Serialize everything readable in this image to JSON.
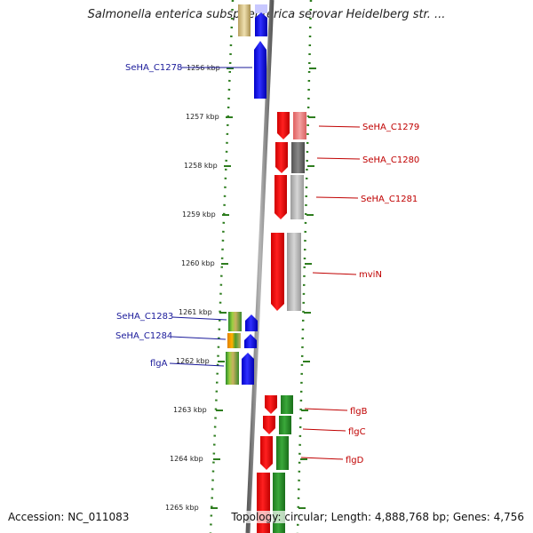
{
  "title": "Salmonella enterica subsp. enterica serovar Heidelberg str. ...",
  "footer": {
    "accession": "Accession: NC_011083",
    "stats": "Topology: circular; Length: 4,888,768 bp; Genes: 4,756"
  },
  "colors": {
    "backbone": "#8a8a8a",
    "tick": "#2e7d1f",
    "plus_strand": "#1010e0",
    "minus_strand": "#ee1111",
    "plus_label": "#1a1a9a",
    "minus_label": "#c00000",
    "flag_green": "#2a8a2a"
  },
  "ticks": [
    {
      "label": "1256 kbp"
    },
    {
      "label": "1257 kbp"
    },
    {
      "label": "1258 kbp"
    },
    {
      "label": "1259 kbp"
    },
    {
      "label": "1260 kbp"
    },
    {
      "label": "1261 kbp"
    },
    {
      "label": "1262 kbp"
    },
    {
      "label": "1263 kbp"
    },
    {
      "label": "1264 kbp"
    },
    {
      "label": "1265 kbp"
    }
  ],
  "genes_left": [
    {
      "label": "SeHA_C1278"
    },
    {
      "label": "SeHA_C1283"
    },
    {
      "label": "SeHA_C1284"
    },
    {
      "label": "flgA"
    }
  ],
  "genes_right": [
    {
      "label": "SeHA_C1279"
    },
    {
      "label": "SeHA_C1280"
    },
    {
      "label": "SeHA_C1281"
    },
    {
      "label": "mviN"
    },
    {
      "label": "flgB"
    },
    {
      "label": "flgC"
    },
    {
      "label": "flgD"
    }
  ]
}
